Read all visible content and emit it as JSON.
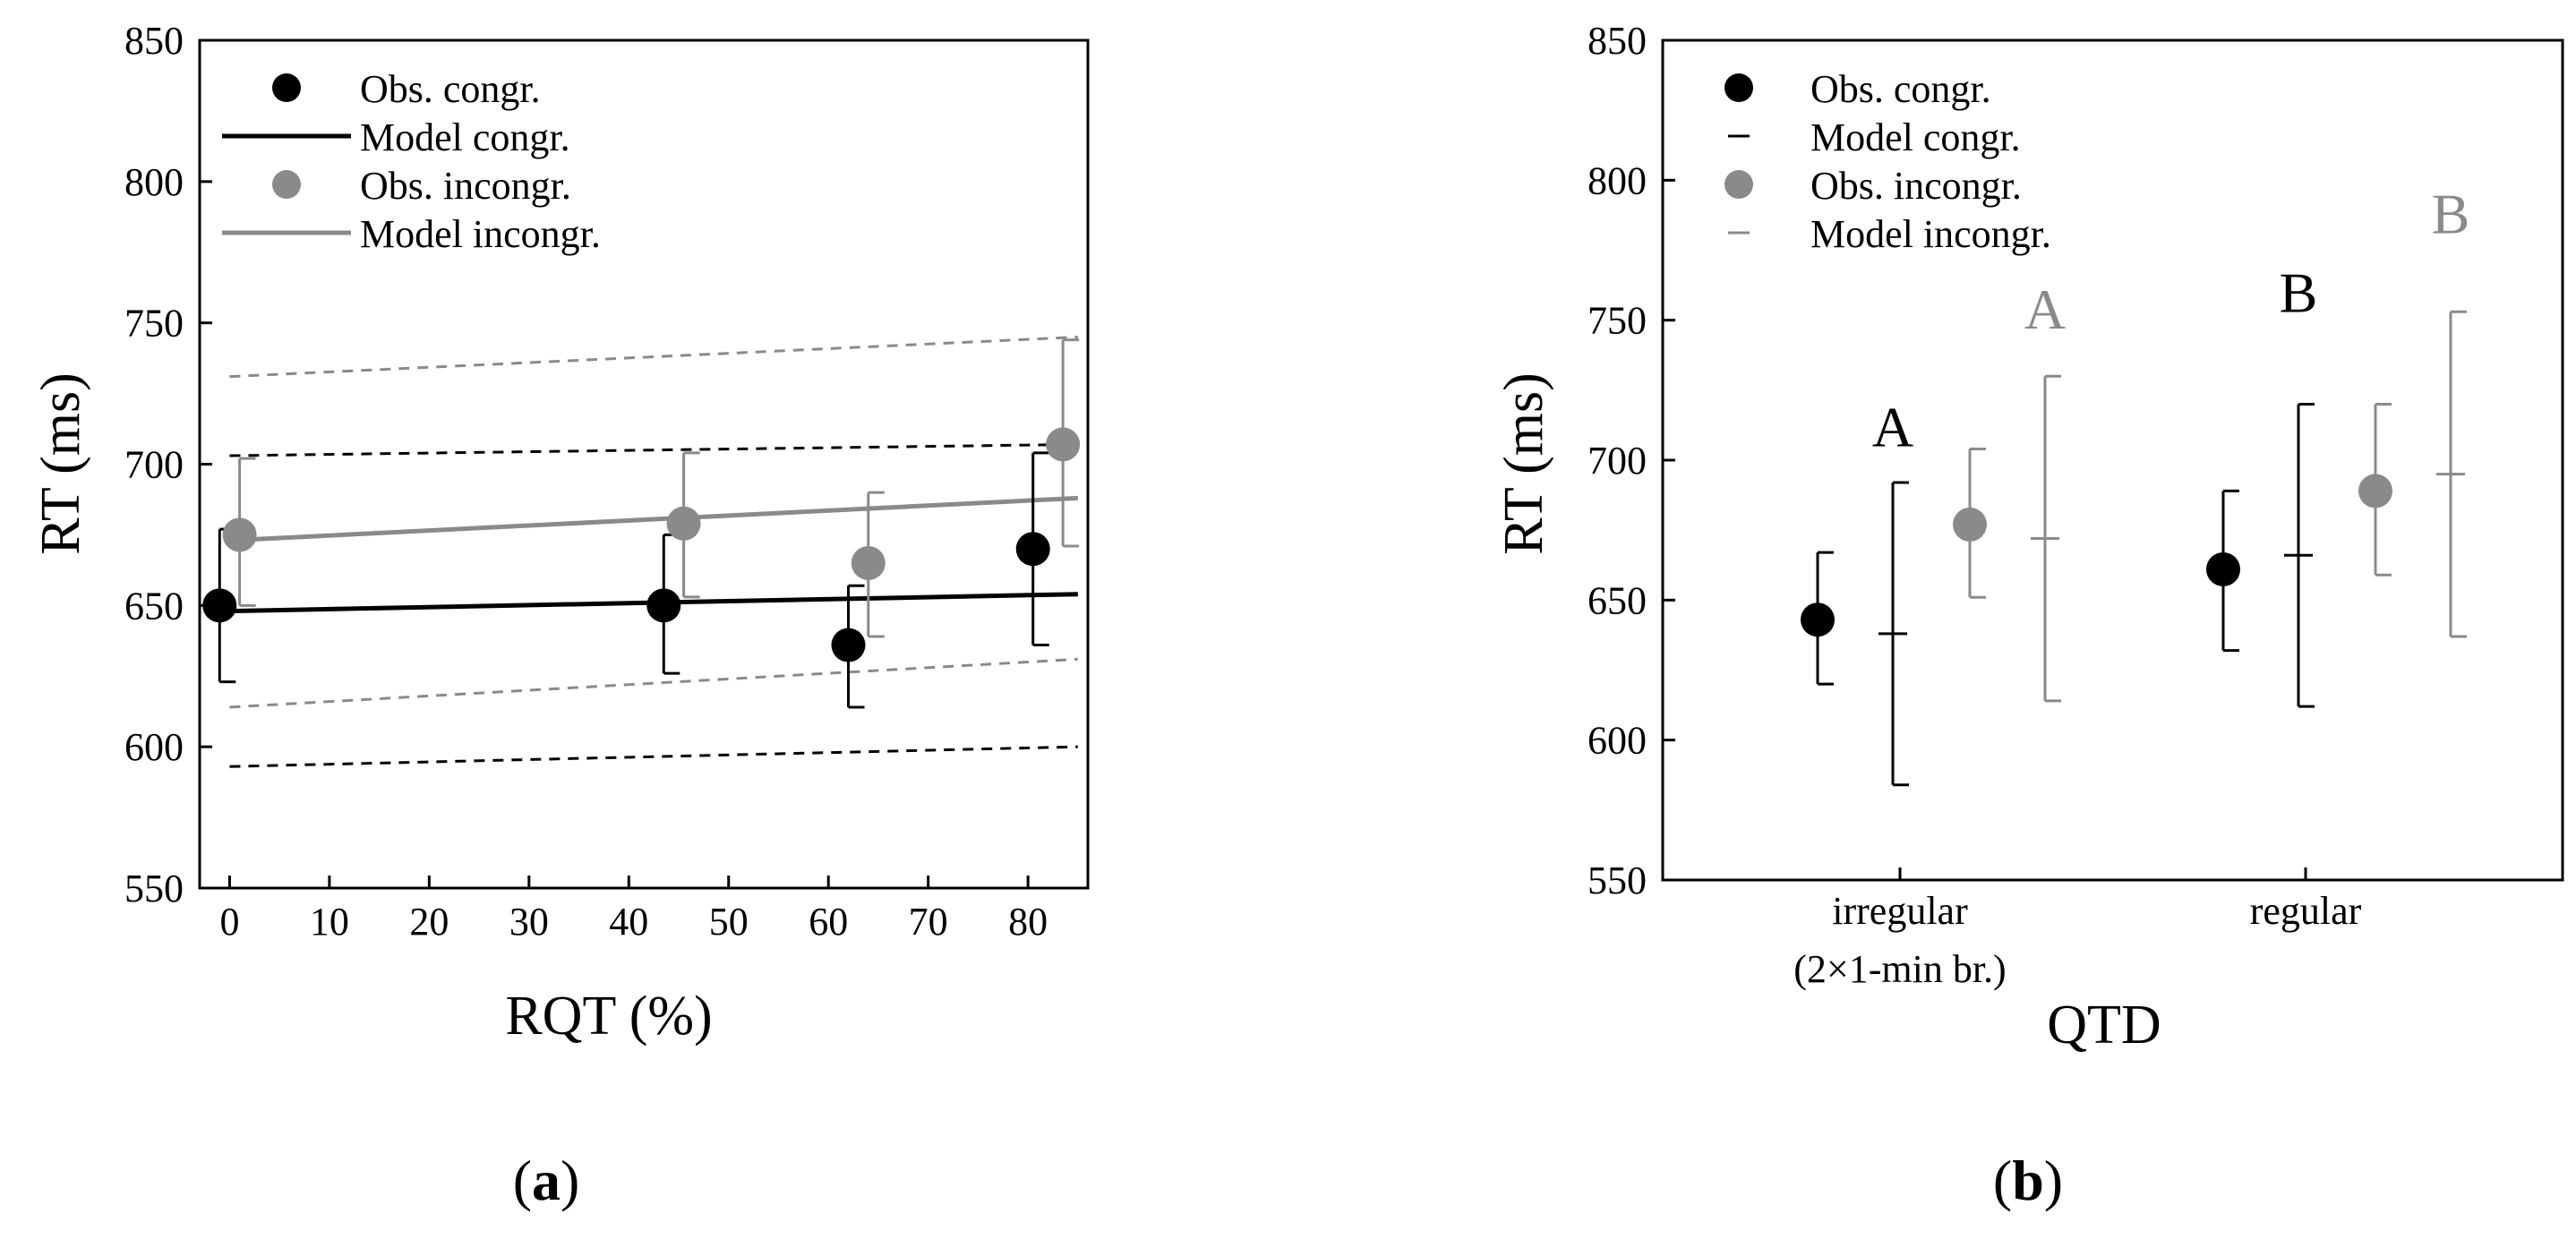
{
  "colors": {
    "congruent": "#000000",
    "incongruent": "#8a8a8a"
  },
  "chart_data": [
    {
      "type": "scatter",
      "panel": "a",
      "xlabel": "RQT (%)",
      "ylabel": "RT (ms)",
      "xlim": [
        -3,
        86
      ],
      "ylim": [
        550,
        850
      ],
      "xticks": [
        0,
        10,
        20,
        30,
        40,
        50,
        60,
        70,
        80
      ],
      "yticks": [
        550,
        600,
        650,
        700,
        750,
        800,
        850
      ],
      "panel_label": {
        "open": "(",
        "letter": "a",
        "close": ")"
      },
      "legend": {
        "placement": "top-left",
        "entries": [
          {
            "label": "Obs. congr.",
            "kind": "marker",
            "series": "congruent"
          },
          {
            "label": "Model congr.",
            "kind": "line",
            "series": "congruent"
          },
          {
            "label": "Obs. incongr.",
            "kind": "marker",
            "series": "incongruent"
          },
          {
            "label": "Model incongr.",
            "kind": "line",
            "series": "incongruent"
          }
        ]
      },
      "observed": [
        {
          "name": "Obs. congr.",
          "color_key": "congruent",
          "x": [
            -1,
            43.5,
            62,
            80.5
          ],
          "y": [
            650,
            650,
            636,
            670
          ],
          "err_low": [
            623,
            626,
            614,
            636
          ],
          "err_high": [
            677,
            675,
            657,
            704
          ]
        },
        {
          "name": "Obs. incongr.",
          "color_key": "incongruent",
          "x": [
            1,
            45.5,
            64,
            83.5
          ],
          "y": [
            675,
            679,
            665,
            707
          ],
          "err_low": [
            650,
            653,
            639,
            671
          ],
          "err_high": [
            702,
            704,
            690,
            744
          ]
        }
      ],
      "model": [
        {
          "name": "Model congr.",
          "color_key": "congruent",
          "x": [
            0,
            85
          ],
          "y": [
            648,
            654
          ],
          "ci_low": [
            593,
            600
          ],
          "ci_high": [
            703,
            707
          ]
        },
        {
          "name": "Model incongr.",
          "color_key": "incongruent",
          "x": [
            0,
            85
          ],
          "y": [
            673,
            688
          ],
          "ci_low": [
            614,
            631
          ],
          "ci_high": [
            731,
            745
          ]
        }
      ]
    },
    {
      "type": "scatter",
      "panel": "b",
      "xlabel": "QTD",
      "ylabel": "RT (ms)",
      "ylim": [
        550,
        850
      ],
      "yticks": [
        550,
        600,
        650,
        700,
        750,
        800,
        850
      ],
      "categories": [
        {
          "line1": "irregular",
          "line2": "(2×1-min br.)"
        },
        {
          "line1": "regular",
          "line2": ""
        }
      ],
      "panel_label": {
        "open": "(",
        "letter": "b",
        "close": ")"
      },
      "legend": {
        "placement": "top-left",
        "entries": [
          {
            "label": "Obs. congr.",
            "kind": "marker",
            "series": "congruent"
          },
          {
            "label": "Model congr.",
            "kind": "dash",
            "series": "congruent"
          },
          {
            "label": "Obs. incongr.",
            "kind": "marker",
            "series": "incongruent"
          },
          {
            "label": "Model incongr.",
            "kind": "dash",
            "series": "incongruent"
          }
        ]
      },
      "observed": [
        {
          "name": "Obs. congr.",
          "color_key": "congruent",
          "values": [
            643,
            661
          ],
          "err_low": [
            620,
            632
          ],
          "err_high": [
            667,
            689
          ]
        },
        {
          "name": "Obs. incongr.",
          "color_key": "incongruent",
          "values": [
            677,
            689
          ],
          "err_low": [
            651,
            659
          ],
          "err_high": [
            704,
            720
          ]
        }
      ],
      "model": [
        {
          "name": "Model congr.",
          "color_key": "congruent",
          "values": [
            638,
            666
          ],
          "err_low": [
            584,
            612
          ],
          "err_high": [
            692,
            720
          ]
        },
        {
          "name": "Model incongr.",
          "color_key": "incongruent",
          "values": [
            672,
            695
          ],
          "err_low": [
            614,
            637
          ],
          "err_high": [
            730,
            753
          ]
        }
      ],
      "significance_labels": [
        {
          "text": "A",
          "category": 0,
          "series": "congruent",
          "y": 705
        },
        {
          "text": "A",
          "category": 0,
          "series": "incongruent",
          "y": 747
        },
        {
          "text": "B",
          "category": 1,
          "series": "congruent",
          "y": 753
        },
        {
          "text": "B",
          "category": 1,
          "series": "incongruent",
          "y": 781
        }
      ]
    }
  ]
}
